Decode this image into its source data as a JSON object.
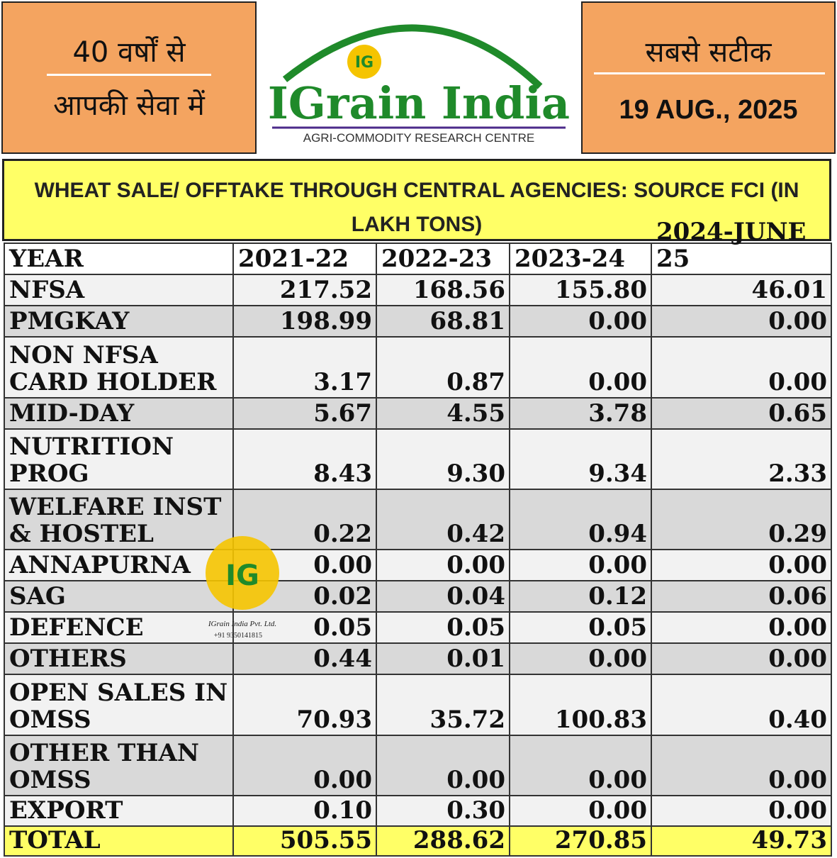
{
  "header": {
    "left": [
      "40 वर्षों से",
      "आपकी सेवा में"
    ],
    "logo": {
      "badge": "IG",
      "name": "IGrain India",
      "tagline": "AGRI-COMMODITY RESEARCH CENTRE"
    },
    "right": [
      "सबसे सटीक",
      "19 AUG., 2025"
    ]
  },
  "title": "WHEAT SALE/ OFFTAKE THROUGH CENTRAL AGENCIES: SOURCE FCI (IN LAKH TONS)",
  "table": {
    "columns": [
      "YEAR",
      "2021-22",
      "2022-23",
      "2023-24",
      "2024-JUNE 25"
    ],
    "rows": [
      [
        "NFSA",
        "217.52",
        "168.56",
        "155.80",
        "46.01"
      ],
      [
        "PMGKAY",
        "198.99",
        "68.81",
        "0.00",
        "0.00"
      ],
      [
        "NON NFSA CARD HOLDER",
        "3.17",
        "0.87",
        "0.00",
        "0.00"
      ],
      [
        "MID-DAY",
        "5.67",
        "4.55",
        "3.78",
        "0.65"
      ],
      [
        "NUTRITION PROG",
        "8.43",
        "9.30",
        "9.34",
        "2.33"
      ],
      [
        "WELFARE INST & HOSTEL",
        "0.22",
        "0.42",
        "0.94",
        "0.29"
      ],
      [
        "ANNAPURNA",
        "0.00",
        "0.00",
        "0.00",
        "0.00"
      ],
      [
        "SAG",
        "0.02",
        "0.04",
        "0.12",
        "0.06"
      ],
      [
        "DEFENCE",
        "0.05",
        "0.05",
        "0.05",
        "0.00"
      ],
      [
        "OTHERS",
        "0.44",
        "0.01",
        "0.00",
        "0.00"
      ],
      [
        "OPEN SALES IN OMSS",
        "70.93",
        "35.72",
        "100.83",
        "0.40"
      ],
      [
        "OTHER THAN OMSS",
        "0.00",
        "0.00",
        "0.00",
        "0.00"
      ],
      [
        "EXPORT",
        "0.10",
        "0.30",
        "0.00",
        "0.00"
      ],
      [
        "TOTAL",
        "505.55",
        "288.62",
        "270.85",
        "49.73"
      ]
    ]
  },
  "watermark": {
    "badge": "IG",
    "company": "IGrain India Pvt. Ltd.",
    "phone": "+91 9350141815"
  }
}
